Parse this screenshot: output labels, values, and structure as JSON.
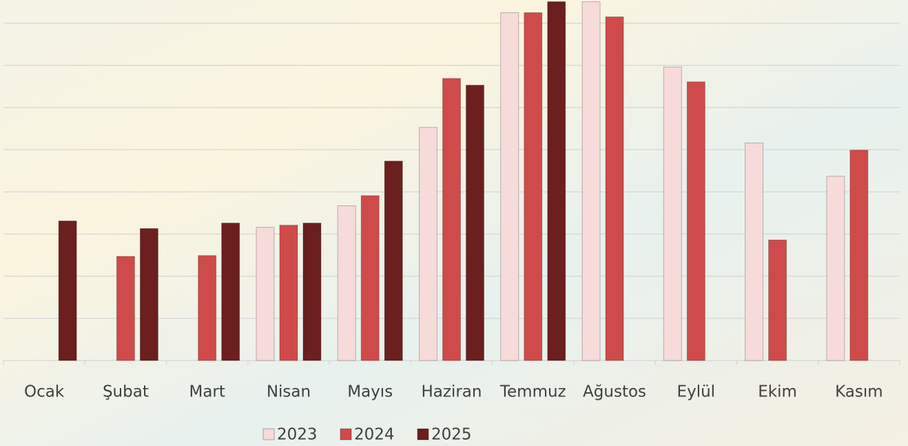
{
  "chart_data": {
    "type": "bar",
    "categories": [
      "Ocak",
      "Şubat",
      "Mart",
      "Nisan",
      "Mayıs",
      "Haziran",
      "Temmuz",
      "Ağustos",
      "Eylül",
      "Ekim",
      "Kasım"
    ],
    "series": [
      {
        "name": "2023",
        "color": "#f7dada",
        "values": [
          null,
          null,
          null,
          3.16,
          3.67,
          5.53,
          8.25,
          8.51,
          6.96,
          5.16,
          4.37
        ]
      },
      {
        "name": "2024",
        "color": "#cf4b4b",
        "values": [
          null,
          2.47,
          2.49,
          3.21,
          3.91,
          6.69,
          8.25,
          8.15,
          6.61,
          2.86,
          4.99
        ]
      },
      {
        "name": "2025",
        "color": "#6b1f1f",
        "values": [
          3.31,
          3.13,
          3.26,
          3.26,
          4.73,
          6.53,
          8.51,
          null,
          null,
          null,
          null
        ]
      }
    ],
    "ylim": [
      0,
      8.55
    ],
    "yticks": [
      0,
      1,
      2,
      3,
      4,
      5,
      6,
      7,
      8
    ],
    "grid": true,
    "legend": "bottom"
  }
}
